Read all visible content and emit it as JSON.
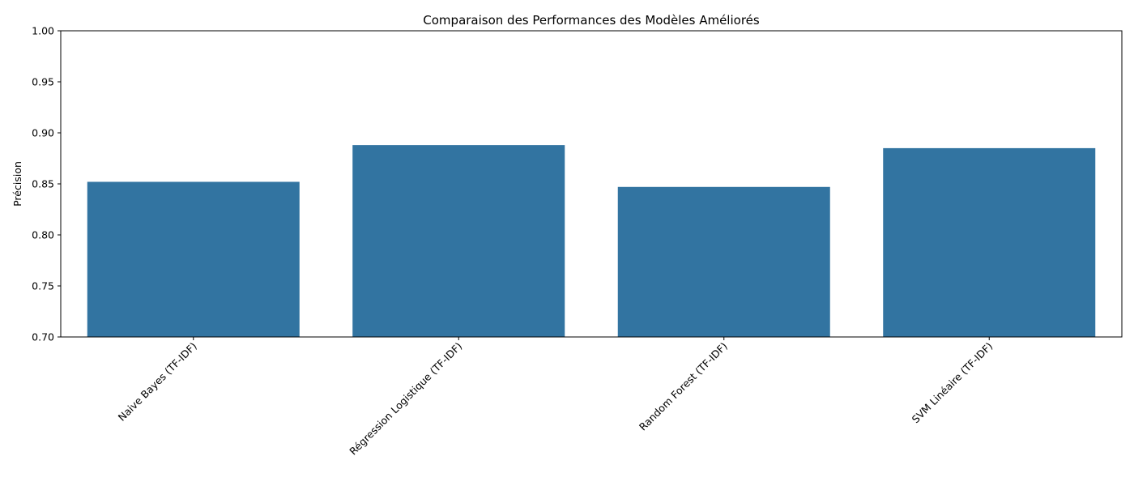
{
  "chart_data": {
    "type": "bar",
    "title": "Comparaison des Performances des Modèles Améliorés",
    "xlabel": "",
    "ylabel": "Précision",
    "categories": [
      "Naive Bayes (TF-IDF)",
      "Régression Logistique (TF-IDF)",
      "Random Forest (TF-IDF)",
      "SVM Linéaire (TF-IDF)"
    ],
    "values": [
      0.852,
      0.888,
      0.847,
      0.885
    ],
    "ylim": [
      0.7,
      1.0
    ],
    "yticks": [
      "0.70",
      "0.75",
      "0.80",
      "0.85",
      "0.90",
      "0.95",
      "1.00"
    ],
    "bar_color": "#3274a1",
    "grid": false,
    "legend": "none",
    "xtick_rotation": "45 degrees"
  }
}
